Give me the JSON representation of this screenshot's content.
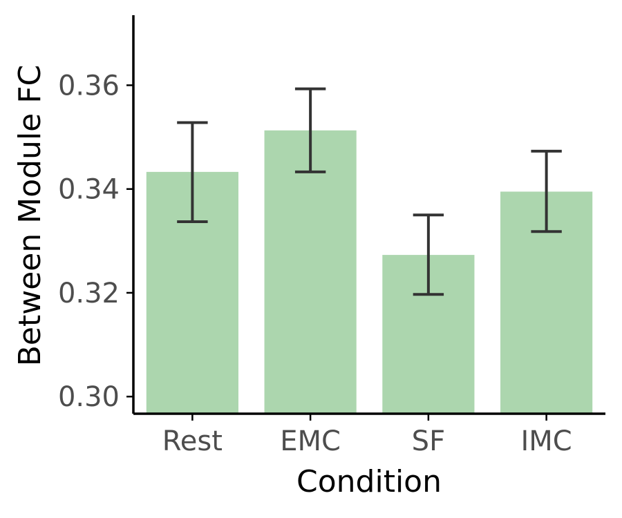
{
  "chart_data": {
    "type": "bar",
    "xlabel": "Condition",
    "ylabel": "Between Module FC",
    "categories": [
      "Rest",
      "EMC",
      "SF",
      "IMC"
    ],
    "values": [
      0.3433,
      0.3513,
      0.3273,
      0.3395
    ],
    "error_low": [
      0.3337,
      0.3433,
      0.3197,
      0.3318
    ],
    "error_high": [
      0.3528,
      0.3593,
      0.335,
      0.3473
    ],
    "ylim": [
      0.2967,
      0.3735
    ],
    "yticks": [
      0.3,
      0.32,
      0.34,
      0.36
    ],
    "ytick_labels": [
      "0.30",
      "0.32",
      "0.34",
      "0.36"
    ],
    "grid": false,
    "legend": "none",
    "colors": {
      "bar": "#acd6ae",
      "errorbar": "#333333",
      "axis": "#000000",
      "tick_label": "#4d4d4d"
    }
  }
}
